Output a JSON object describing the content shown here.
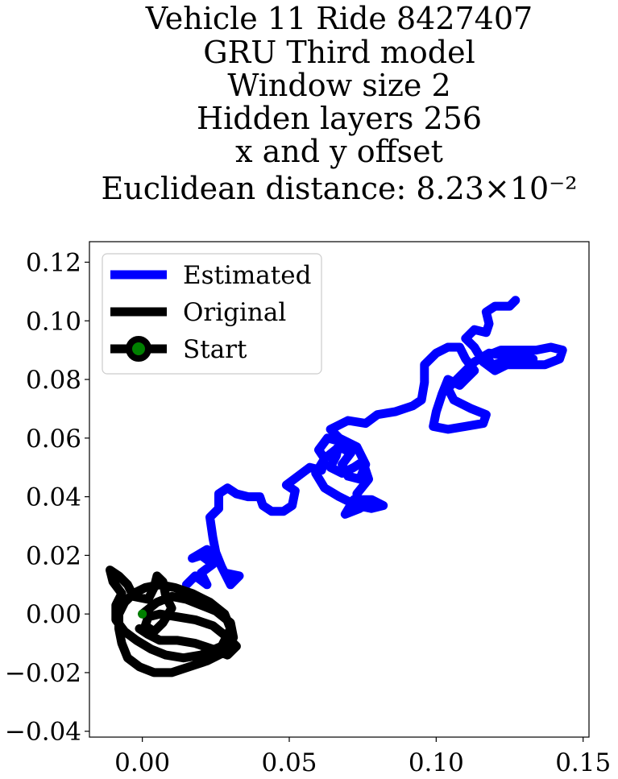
{
  "chart_data": {
    "type": "line",
    "title_lines": [
      "Vehicle 11 Ride 8427407",
      "GRU Third model",
      "Window size 2",
      "Hidden layers 256",
      "x and y offset",
      "Euclidean distance: 8.23×10⁻²"
    ],
    "xlabel": "",
    "ylabel": "",
    "xlim": [
      -0.018,
      0.152
    ],
    "ylim": [
      -0.042,
      0.127
    ],
    "x_ticks": [
      0.0,
      0.05,
      0.1,
      0.15
    ],
    "x_tick_labels": [
      "0.00",
      "0.05",
      "0.10",
      "0.15"
    ],
    "y_ticks": [
      -0.04,
      -0.02,
      0.0,
      0.02,
      0.04,
      0.06,
      0.08,
      0.1,
      0.12
    ],
    "y_tick_labels": [
      "−0.04",
      "−0.02",
      "0.00",
      "0.02",
      "0.04",
      "0.06",
      "0.08",
      "0.10",
      "0.12"
    ],
    "grid": false,
    "legend_position": "top-left",
    "series": [
      {
        "name": "Estimated",
        "color": "#0000ff",
        "points": [
          [
            0.015,
            0.01
          ],
          [
            0.018,
            0.013
          ],
          [
            0.022,
            0.01
          ],
          [
            0.02,
            0.014
          ],
          [
            0.024,
            0.017
          ],
          [
            0.02,
            0.02
          ],
          [
            0.017,
            0.019
          ],
          [
            0.022,
            0.022
          ],
          [
            0.026,
            0.018
          ],
          [
            0.028,
            0.014
          ],
          [
            0.033,
            0.013
          ],
          [
            0.03,
            0.01
          ],
          [
            0.027,
            0.016
          ],
          [
            0.025,
            0.021
          ],
          [
            0.024,
            0.026
          ],
          [
            0.023,
            0.033
          ],
          [
            0.026,
            0.036
          ],
          [
            0.026,
            0.041
          ],
          [
            0.029,
            0.043
          ],
          [
            0.032,
            0.041
          ],
          [
            0.036,
            0.04
          ],
          [
            0.04,
            0.04
          ],
          [
            0.041,
            0.037
          ],
          [
            0.044,
            0.035
          ],
          [
            0.048,
            0.035
          ],
          [
            0.051,
            0.037
          ],
          [
            0.052,
            0.042
          ],
          [
            0.049,
            0.044
          ],
          [
            0.053,
            0.047
          ],
          [
            0.057,
            0.05
          ],
          [
            0.061,
            0.049
          ],
          [
            0.062,
            0.053
          ],
          [
            0.06,
            0.056
          ],
          [
            0.063,
            0.06
          ],
          [
            0.067,
            0.059
          ],
          [
            0.066,
            0.054
          ],
          [
            0.064,
            0.05
          ],
          [
            0.068,
            0.048
          ],
          [
            0.072,
            0.05
          ],
          [
            0.075,
            0.052
          ],
          [
            0.077,
            0.046
          ],
          [
            0.073,
            0.041
          ],
          [
            0.074,
            0.036
          ],
          [
            0.069,
            0.034
          ],
          [
            0.072,
            0.039
          ],
          [
            0.078,
            0.039
          ],
          [
            0.082,
            0.037
          ],
          [
            0.078,
            0.036
          ],
          [
            0.073,
            0.037
          ],
          [
            0.067,
            0.04
          ],
          [
            0.062,
            0.043
          ],
          [
            0.059,
            0.048
          ],
          [
            0.062,
            0.053
          ],
          [
            0.067,
            0.057
          ],
          [
            0.071,
            0.055
          ],
          [
            0.068,
            0.051
          ],
          [
            0.07,
            0.047
          ],
          [
            0.074,
            0.046
          ],
          [
            0.076,
            0.051
          ],
          [
            0.073,
            0.057
          ],
          [
            0.067,
            0.06
          ],
          [
            0.064,
            0.063
          ],
          [
            0.07,
            0.066
          ],
          [
            0.076,
            0.065
          ],
          [
            0.08,
            0.068
          ],
          [
            0.086,
            0.069
          ],
          [
            0.092,
            0.071
          ],
          [
            0.095,
            0.073
          ],
          [
            0.096,
            0.079
          ],
          [
            0.096,
            0.085
          ],
          [
            0.1,
            0.089
          ],
          [
            0.104,
            0.091
          ],
          [
            0.108,
            0.091
          ],
          [
            0.11,
            0.087
          ],
          [
            0.113,
            0.083
          ],
          [
            0.11,
            0.08
          ],
          [
            0.108,
            0.078
          ],
          [
            0.104,
            0.08
          ],
          [
            0.102,
            0.075
          ],
          [
            0.1,
            0.069
          ],
          [
            0.099,
            0.064
          ],
          [
            0.104,
            0.063
          ],
          [
            0.11,
            0.064
          ],
          [
            0.116,
            0.065
          ],
          [
            0.117,
            0.068
          ],
          [
            0.112,
            0.07
          ],
          [
            0.106,
            0.073
          ],
          [
            0.104,
            0.077
          ],
          [
            0.108,
            0.081
          ],
          [
            0.113,
            0.086
          ],
          [
            0.118,
            0.089
          ],
          [
            0.124,
            0.088
          ],
          [
            0.13,
            0.088
          ],
          [
            0.133,
            0.087
          ],
          [
            0.13,
            0.087
          ],
          [
            0.124,
            0.086
          ],
          [
            0.119,
            0.085
          ],
          [
            0.117,
            0.088
          ],
          [
            0.122,
            0.09
          ],
          [
            0.128,
            0.09
          ],
          [
            0.134,
            0.09
          ],
          [
            0.139,
            0.091
          ],
          [
            0.143,
            0.09
          ],
          [
            0.142,
            0.087
          ],
          [
            0.137,
            0.085
          ],
          [
            0.13,
            0.085
          ],
          [
            0.124,
            0.085
          ],
          [
            0.12,
            0.083
          ],
          [
            0.116,
            0.086
          ],
          [
            0.113,
            0.091
          ],
          [
            0.11,
            0.094
          ],
          [
            0.113,
            0.097
          ],
          [
            0.117,
            0.096
          ],
          [
            0.118,
            0.099
          ],
          [
            0.117,
            0.103
          ],
          [
            0.12,
            0.105
          ],
          [
            0.125,
            0.105
          ],
          [
            0.127,
            0.107
          ]
        ]
      },
      {
        "name": "Original",
        "color": "#000000",
        "points": [
          [
            0.0,
            0.0
          ],
          [
            0.005,
            0.004
          ],
          [
            0.01,
            0.006
          ],
          [
            0.015,
            0.005
          ],
          [
            0.02,
            0.003
          ],
          [
            0.025,
            0.001
          ],
          [
            0.03,
            -0.003
          ],
          [
            0.031,
            -0.008
          ],
          [
            0.028,
            -0.013
          ],
          [
            0.022,
            -0.016
          ],
          [
            0.016,
            -0.018
          ],
          [
            0.01,
            -0.02
          ],
          [
            0.004,
            -0.02
          ],
          [
            -0.001,
            -0.018
          ],
          [
            -0.005,
            -0.015
          ],
          [
            -0.007,
            -0.01
          ],
          [
            -0.008,
            -0.005
          ],
          [
            -0.008,
            0.0
          ],
          [
            -0.006,
            0.004
          ],
          [
            -0.003,
            0.007
          ],
          [
            0.001,
            0.009
          ],
          [
            0.006,
            0.01
          ],
          [
            0.011,
            0.009
          ],
          [
            0.017,
            0.007
          ],
          [
            0.023,
            0.004
          ],
          [
            0.028,
            0.0
          ],
          [
            0.03,
            -0.005
          ],
          [
            0.027,
            -0.011
          ],
          [
            0.02,
            -0.014
          ],
          [
            0.014,
            -0.015
          ],
          [
            0.008,
            -0.014
          ],
          [
            0.003,
            -0.012
          ],
          [
            -0.002,
            -0.009
          ],
          [
            -0.006,
            -0.006
          ],
          [
            -0.009,
            -0.002
          ],
          [
            -0.009,
            0.003
          ],
          [
            -0.007,
            0.007
          ],
          [
            -0.01,
            0.011
          ],
          [
            -0.011,
            0.015
          ],
          [
            -0.008,
            0.013
          ],
          [
            -0.005,
            0.01
          ],
          [
            -0.003,
            0.006
          ],
          [
            0.002,
            0.005
          ],
          [
            0.004,
            0.009
          ],
          [
            0.005,
            0.013
          ],
          [
            0.007,
            0.011
          ],
          [
            0.008,
            0.006
          ],
          [
            0.01,
            0.002
          ],
          [
            0.007,
            -0.003
          ],
          [
            0.004,
            -0.006
          ],
          [
            0.001,
            -0.004
          ],
          [
            0.002,
            -0.001
          ],
          [
            0.006,
            0.0
          ],
          [
            0.012,
            -0.001
          ],
          [
            0.018,
            -0.002
          ],
          [
            0.024,
            -0.004
          ],
          [
            0.029,
            -0.008
          ],
          [
            0.032,
            -0.011
          ],
          [
            0.029,
            -0.014
          ],
          [
            0.024,
            -0.012
          ],
          [
            0.018,
            -0.01
          ],
          [
            0.012,
            -0.009
          ],
          [
            0.006,
            -0.009
          ],
          [
            0.002,
            -0.007
          ],
          [
            -0.001,
            -0.005
          ]
        ]
      }
    ],
    "start": {
      "name": "Start",
      "x": 0.0,
      "y": 0.0,
      "marker_color": "#008000",
      "edge_color": "#000000"
    },
    "legend_entries": [
      "Estimated",
      "Original",
      "Start"
    ]
  }
}
